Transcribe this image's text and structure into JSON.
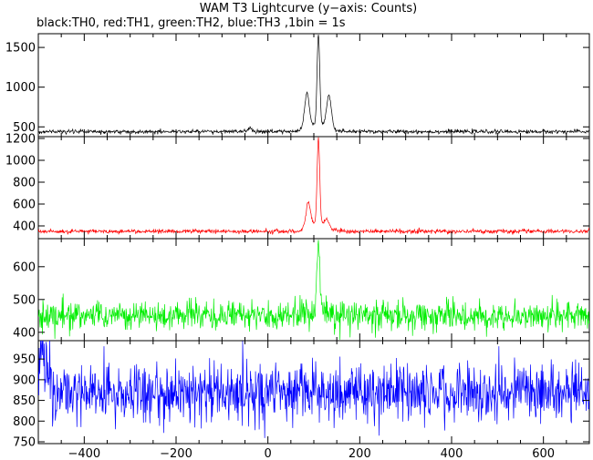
{
  "title": "WAM T3 Lightcurve (y−axis: Counts)",
  "subtitle": "black:TH0, red:TH1, green:TH2, blue:TH3 ,1bin = 1s",
  "chart_data": {
    "type": "line",
    "title": "WAM T3 Lightcurve (y−axis: Counts)",
    "subtitle": "black:TH0, red:TH1, green:TH2, blue:TH3 ,1bin = 1s",
    "x_range": [
      -500,
      700
    ],
    "x_ticks": [
      -400,
      -200,
      0,
      200,
      400,
      600
    ],
    "x_tick_labels": [
      "−400",
      "−200",
      "0",
      "200",
      "400",
      "600"
    ],
    "bin_seconds": 1,
    "panels": [
      {
        "series": "TH0",
        "color": "#000000",
        "ylim": [
          400,
          1650
        ],
        "y_ticks": [
          500,
          1000,
          1500
        ],
        "y_tick_labels": [
          "500",
          "1000",
          "1500"
        ],
        "baseline": 440,
        "noise_sd": 12,
        "features": [
          {
            "x": -40,
            "peak": 480
          },
          {
            "x": 85,
            "peak": 880
          },
          {
            "x": 110,
            "peak": 1590
          },
          {
            "x": 133,
            "peak": 850
          }
        ]
      },
      {
        "series": "TH1",
        "color": "#ff0000",
        "ylim": [
          300,
          1200
        ],
        "y_ticks": [
          400,
          600,
          800,
          1000,
          1200
        ],
        "y_tick_labels": [
          "400",
          "600",
          "800",
          "1000",
          "1200"
        ],
        "baseline": 350,
        "noise_sd": 9,
        "features": [
          {
            "x": 88,
            "peak": 580
          },
          {
            "x": 110,
            "peak": 1140
          },
          {
            "x": 128,
            "peak": 420
          }
        ]
      },
      {
        "series": "TH2",
        "color": "#00ee00",
        "ylim": [
          380,
          680
        ],
        "y_ticks": [
          400,
          500,
          600
        ],
        "y_tick_labels": [
          "400",
          "500",
          "600"
        ],
        "baseline": 450,
        "noise_sd": 22,
        "features": [
          {
            "x": 110,
            "peak": 670
          }
        ]
      },
      {
        "series": "TH3",
        "color": "#0000ff",
        "ylim": [
          750,
          990
        ],
        "y_ticks": [
          750,
          800,
          850,
          900,
          950
        ],
        "y_tick_labels": [
          "750",
          "800",
          "850",
          "900",
          "950"
        ],
        "baseline": 870,
        "noise_sd": 35,
        "features": [
          {
            "x": -490,
            "peak": 940
          }
        ]
      }
    ]
  }
}
